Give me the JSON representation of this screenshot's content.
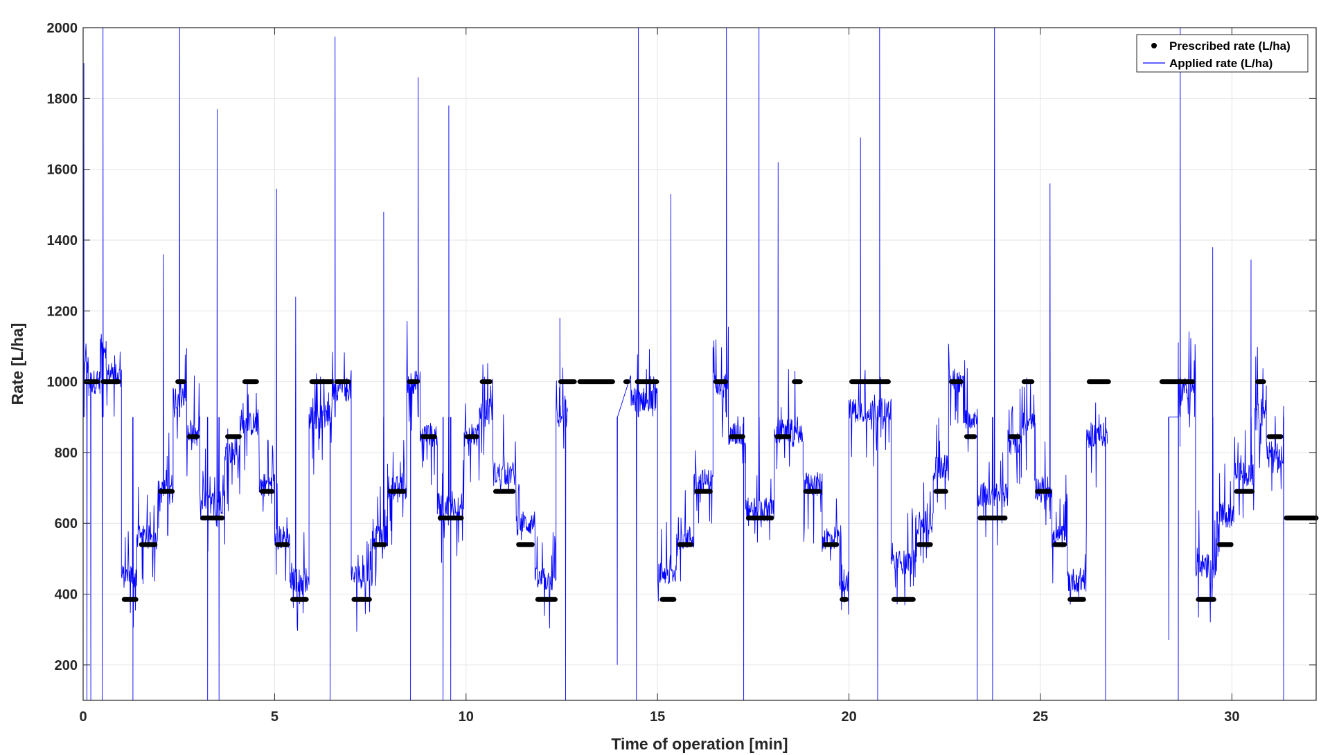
{
  "chart_data": {
    "type": "line",
    "title": "",
    "xlabel": "Time of operation [min]",
    "ylabel": "Rate [L/ha]",
    "xlim": [
      0,
      32.2
    ],
    "ylim": [
      100,
      2000
    ],
    "xticks": [
      0,
      5,
      10,
      15,
      20,
      25,
      30
    ],
    "yticks": [
      200,
      400,
      600,
      800,
      1000,
      1200,
      1400,
      1600,
      1800,
      2000
    ],
    "grid": true,
    "legend_position": "top-right",
    "series": [
      {
        "name": "Prescribed rate (L/ha)",
        "style": "dots",
        "color": "#000000",
        "segments": [
          [
            0.0,
            0.45,
            1000
          ],
          [
            0.45,
            1.0,
            1000
          ],
          [
            1.0,
            1.45,
            385
          ],
          [
            1.45,
            1.95,
            540
          ],
          [
            1.95,
            2.4,
            690
          ],
          [
            2.4,
            2.7,
            1000
          ],
          [
            2.7,
            3.05,
            845
          ],
          [
            3.05,
            3.7,
            615
          ],
          [
            3.7,
            4.15,
            845
          ],
          [
            4.15,
            4.6,
            1000
          ],
          [
            4.6,
            5.0,
            690
          ],
          [
            5.0,
            5.4,
            540
          ],
          [
            5.4,
            5.9,
            385
          ],
          [
            5.9,
            6.55,
            1000
          ],
          [
            6.55,
            7.0,
            1000
          ],
          [
            7.0,
            7.55,
            385
          ],
          [
            7.55,
            7.95,
            540
          ],
          [
            7.95,
            8.45,
            690
          ],
          [
            8.45,
            8.8,
            1000
          ],
          [
            8.8,
            9.25,
            845
          ],
          [
            9.25,
            9.95,
            615
          ],
          [
            9.95,
            10.35,
            845
          ],
          [
            10.35,
            10.7,
            1000
          ],
          [
            10.7,
            11.3,
            690
          ],
          [
            11.3,
            11.8,
            540
          ],
          [
            11.8,
            12.4,
            385
          ],
          [
            12.4,
            12.9,
            1000
          ],
          [
            12.9,
            13.9,
            1000
          ],
          [
            14.1,
            14.3,
            1000
          ],
          [
            14.4,
            15.05,
            1000
          ],
          [
            15.05,
            15.5,
            385
          ],
          [
            15.5,
            15.95,
            540
          ],
          [
            15.95,
            16.45,
            690
          ],
          [
            16.45,
            16.85,
            1000
          ],
          [
            16.85,
            17.3,
            845
          ],
          [
            17.3,
            18.05,
            615
          ],
          [
            18.05,
            18.5,
            845
          ],
          [
            18.5,
            18.8,
            1000
          ],
          [
            18.8,
            19.3,
            690
          ],
          [
            19.3,
            19.75,
            540
          ],
          [
            19.75,
            20.0,
            385
          ],
          [
            20.0,
            21.1,
            1000
          ],
          [
            21.1,
            21.75,
            385
          ],
          [
            21.75,
            22.2,
            540
          ],
          [
            22.2,
            22.6,
            690
          ],
          [
            22.6,
            23.0,
            1000
          ],
          [
            23.0,
            23.35,
            845
          ],
          [
            23.35,
            24.15,
            615
          ],
          [
            24.15,
            24.5,
            845
          ],
          [
            24.5,
            24.85,
            1000
          ],
          [
            24.85,
            25.3,
            690
          ],
          [
            25.3,
            25.7,
            540
          ],
          [
            25.7,
            26.2,
            385
          ],
          [
            26.2,
            26.85,
            1000
          ],
          [
            28.1,
            29.05,
            1000
          ],
          [
            29.05,
            29.6,
            385
          ],
          [
            29.6,
            30.05,
            540
          ],
          [
            30.05,
            30.6,
            690
          ],
          [
            30.6,
            30.9,
            1000
          ],
          [
            30.9,
            31.35,
            845
          ],
          [
            31.35,
            32.6,
            615
          ]
        ]
      },
      {
        "name": "Applied rate (L/ha)",
        "style": "line",
        "color": "#0000ff",
        "segments": [
          [
            0.0,
            0.15,
            1040
          ],
          [
            0.15,
            0.45,
            1000
          ],
          [
            0.45,
            0.6,
            1100
          ],
          [
            0.6,
            1.0,
            1020
          ],
          [
            1.0,
            1.4,
            450
          ],
          [
            1.4,
            1.95,
            560
          ],
          [
            1.95,
            2.35,
            690
          ],
          [
            2.35,
            2.7,
            960
          ],
          [
            2.7,
            3.05,
            850
          ],
          [
            3.05,
            3.7,
            660
          ],
          [
            3.7,
            4.1,
            800
          ],
          [
            4.1,
            4.6,
            880
          ],
          [
            4.6,
            5.0,
            710
          ],
          [
            5.0,
            5.4,
            560
          ],
          [
            5.4,
            5.9,
            440
          ],
          [
            5.9,
            6.5,
            900
          ],
          [
            6.5,
            7.0,
            980
          ],
          [
            7.0,
            7.55,
            450
          ],
          [
            7.55,
            7.95,
            560
          ],
          [
            7.95,
            8.45,
            700
          ],
          [
            8.45,
            8.8,
            1000
          ],
          [
            8.8,
            9.25,
            850
          ],
          [
            9.25,
            9.95,
            650
          ],
          [
            9.95,
            10.35,
            850
          ],
          [
            10.35,
            10.7,
            920
          ],
          [
            10.7,
            11.3,
            740
          ],
          [
            11.3,
            11.8,
            600
          ],
          [
            11.8,
            12.35,
            440
          ],
          [
            12.35,
            12.65,
            900
          ],
          [
            14.3,
            15.0,
            950
          ],
          [
            15.0,
            15.5,
            460
          ],
          [
            15.5,
            15.95,
            560
          ],
          [
            15.95,
            16.45,
            720
          ],
          [
            16.45,
            16.85,
            1000
          ],
          [
            16.85,
            17.3,
            850
          ],
          [
            17.3,
            18.05,
            640
          ],
          [
            18.05,
            18.5,
            860
          ],
          [
            18.5,
            18.8,
            850
          ],
          [
            18.8,
            19.3,
            710
          ],
          [
            19.3,
            19.75,
            560
          ],
          [
            19.75,
            20.0,
            440
          ],
          [
            20.0,
            21.1,
            920
          ],
          [
            21.1,
            21.75,
            490
          ],
          [
            21.75,
            22.2,
            600
          ],
          [
            22.2,
            22.6,
            760
          ],
          [
            22.6,
            23.0,
            1000
          ],
          [
            23.0,
            23.35,
            900
          ],
          [
            23.35,
            24.15,
            680
          ],
          [
            24.15,
            24.5,
            830
          ],
          [
            24.5,
            24.85,
            880
          ],
          [
            24.85,
            25.3,
            700
          ],
          [
            25.3,
            25.7,
            560
          ],
          [
            25.7,
            26.2,
            440
          ],
          [
            26.2,
            26.75,
            850
          ],
          [
            28.6,
            29.05,
            980
          ],
          [
            29.05,
            29.6,
            480
          ],
          [
            29.6,
            30.05,
            620
          ],
          [
            30.05,
            30.6,
            740
          ],
          [
            30.6,
            30.9,
            920
          ],
          [
            30.9,
            31.35,
            800
          ]
        ],
        "spikes": [
          [
            0.02,
            1900
          ],
          [
            0.1,
            100
          ],
          [
            0.2,
            100
          ],
          [
            0.5,
            100
          ],
          [
            0.52,
            2000
          ],
          [
            1.3,
            100
          ],
          [
            2.1,
            1360
          ],
          [
            2.52,
            2000
          ],
          [
            3.25,
            100
          ],
          [
            3.5,
            1770
          ],
          [
            3.55,
            100
          ],
          [
            5.05,
            1545
          ],
          [
            5.55,
            1240
          ],
          [
            6.45,
            100
          ],
          [
            6.58,
            1975
          ],
          [
            7.85,
            1480
          ],
          [
            8.55,
            100
          ],
          [
            8.75,
            1860
          ],
          [
            9.4,
            100
          ],
          [
            9.55,
            1780
          ],
          [
            9.6,
            100
          ],
          [
            12.45,
            1180
          ],
          [
            12.6,
            100
          ],
          [
            13.95,
            200
          ],
          [
            14.45,
            100
          ],
          [
            14.5,
            2000
          ],
          [
            15.35,
            1530
          ],
          [
            16.8,
            2000
          ],
          [
            17.25,
            100
          ],
          [
            17.65,
            2000
          ],
          [
            18.15,
            1620
          ],
          [
            20.3,
            1690
          ],
          [
            20.75,
            100
          ],
          [
            20.8,
            2000
          ],
          [
            23.35,
            100
          ],
          [
            23.8,
            2000
          ],
          [
            23.75,
            100
          ],
          [
            25.25,
            1560
          ],
          [
            26.7,
            100
          ],
          [
            28.35,
            270
          ],
          [
            28.6,
            100
          ],
          [
            28.65,
            2000
          ],
          [
            29.5,
            1380
          ],
          [
            30.5,
            1345
          ],
          [
            31.35,
            100
          ]
        ]
      }
    ]
  }
}
